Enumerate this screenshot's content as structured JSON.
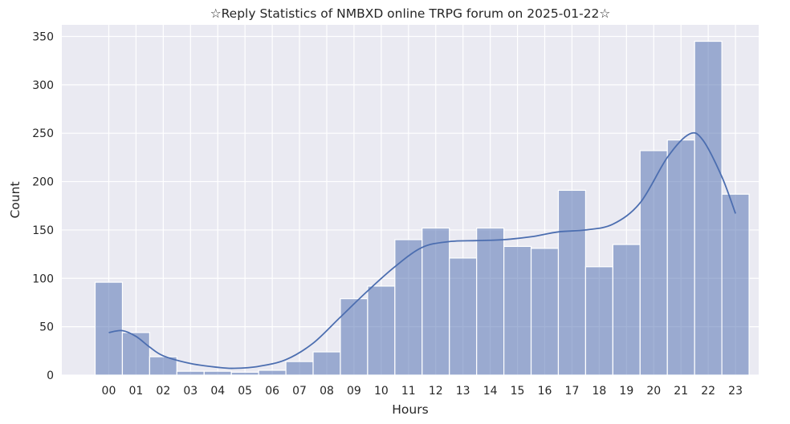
{
  "chart_data": {
    "type": "bar",
    "title": "☆Reply Statistics of NMBXD online TRPG forum on 2025-01-22☆",
    "xlabel": "Hours",
    "ylabel": "Count",
    "categories": [
      "00",
      "01",
      "02",
      "03",
      "04",
      "05",
      "06",
      "07",
      "08",
      "09",
      "10",
      "11",
      "12",
      "13",
      "14",
      "15",
      "16",
      "17",
      "18",
      "19",
      "20",
      "21",
      "22",
      "23"
    ],
    "values": [
      96,
      44,
      19,
      4,
      4,
      3,
      5,
      14,
      24,
      79,
      92,
      140,
      152,
      121,
      152,
      133,
      131,
      191,
      112,
      135,
      232,
      243,
      345,
      187
    ],
    "ylim": [
      0,
      362
    ],
    "yticks": [
      0,
      50,
      100,
      150,
      200,
      250,
      300,
      350
    ],
    "kde": {
      "x": [
        0,
        0.5,
        1,
        1.5,
        2,
        3,
        4,
        4.6,
        5.5,
        6.5,
        7.5,
        8.5,
        9.5,
        10.5,
        11.5,
        12.5,
        13.5,
        14.5,
        15.5,
        16.5,
        17.5,
        18.5,
        19.5,
        20.5,
        21.3,
        21.8,
        22.5,
        23
      ],
      "y": [
        44,
        46,
        40,
        29,
        20,
        12,
        8,
        7,
        9,
        16,
        33,
        60,
        87,
        112,
        132,
        138,
        139,
        140,
        143,
        148,
        150,
        156,
        178,
        225,
        249,
        243,
        205,
        167
      ]
    },
    "colors": {
      "bar": "#5874b4",
      "line": "#4c6eb0",
      "background": "#eaeaf2",
      "grid": "#ffffff"
    },
    "grid": true,
    "legend": "none"
  }
}
